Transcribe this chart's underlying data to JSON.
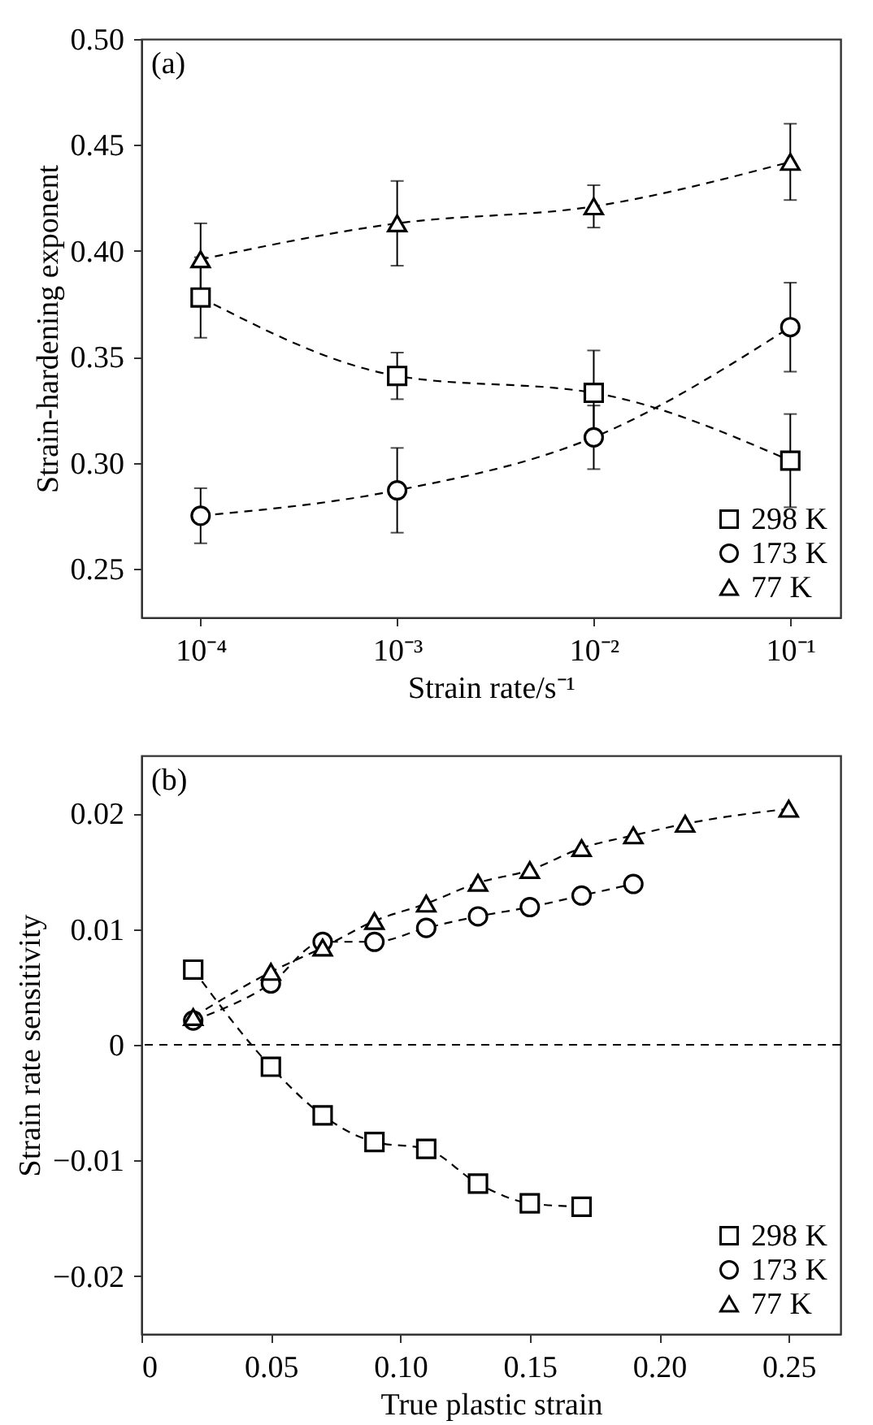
{
  "chart_data": [
    {
      "type": "line",
      "annotations": [
        "(a)"
      ],
      "xlabel": "Strain rate/s⁻¹",
      "ylabel": "Strain-hardening exponent",
      "log": "x",
      "grid": false,
      "legend": "bottom right",
      "xlim": [
        5e-05,
        0.18
      ],
      "xticks": [
        {
          "value": 0.0001,
          "label": "10⁻⁴"
        },
        {
          "value": 0.001,
          "label": "10⁻³"
        },
        {
          "value": 0.01,
          "label": "10⁻²"
        },
        {
          "value": 0.1,
          "label": "10⁻¹"
        }
      ],
      "ylim": [
        0.227,
        0.5
      ],
      "yticks": [
        0.25,
        {
          "value": 0.3,
          "label": "0.30"
        },
        0.35,
        {
          "value": 0.4,
          "label": "0.40"
        },
        0.45,
        {
          "value": 0.5,
          "label": "0.50"
        }
      ],
      "x": [
        0.0001,
        0.001,
        0.01,
        0.1
      ],
      "line_style": "dashed",
      "series": [
        {
          "name": "298 K",
          "color": "#000000",
          "marker": "square",
          "values": [
            0.378,
            0.341,
            0.333,
            0.301
          ],
          "errors": [
            0.019,
            0.011,
            0.02,
            0.022
          ]
        },
        {
          "name": "173 K",
          "color": "#000000",
          "marker": "circle",
          "values": [
            0.275,
            0.287,
            0.312,
            0.364
          ],
          "errors": [
            0.013,
            0.02,
            0.015,
            0.021
          ]
        },
        {
          "name": "77 K",
          "color": "#000000",
          "marker": "triangle",
          "values": [
            0.396,
            0.413,
            0.421,
            0.442
          ],
          "errors": [
            0.017,
            0.02,
            0.01,
            0.018
          ]
        }
      ]
    },
    {
      "type": "line",
      "annotations": [
        "(b)"
      ],
      "xlabel": "True plastic strain",
      "ylabel": "Strain rate sensitivity",
      "grid": false,
      "legend": "bottom right",
      "xlim": [
        0,
        0.27
      ],
      "xticks": [
        0,
        0.05,
        {
          "value": 0.1,
          "label": "0.10"
        },
        0.15,
        {
          "value": 0.2,
          "label": "0.20"
        },
        0.25
      ],
      "ylim": [
        -0.025,
        0.025
      ],
      "yticks": [
        {
          "value": -0.02,
          "label": "−0.02"
        },
        {
          "value": -0.01,
          "label": "−0.01"
        },
        0,
        0.01,
        0.02
      ],
      "line_style": "dashed",
      "ref_lines": [
        {
          "axis": "y",
          "value": 0,
          "line_style": "dashed"
        }
      ],
      "series": [
        {
          "name": "298 K",
          "color": "#000000",
          "marker": "square",
          "x": [
            0.02,
            0.05,
            0.07,
            0.09,
            0.11,
            0.13,
            0.15,
            0.17
          ],
          "values": [
            0.0065,
            -0.0019,
            -0.0061,
            -0.0084,
            -0.009,
            -0.012,
            -0.0137,
            -0.014
          ]
        },
        {
          "name": "173 K",
          "color": "#000000",
          "marker": "circle",
          "x": [
            0.02,
            0.05,
            0.07,
            0.09,
            0.11,
            0.13,
            0.15,
            0.17,
            0.19
          ],
          "values": [
            0.0021,
            0.0053,
            0.0089,
            0.0089,
            0.0101,
            0.0111,
            0.0119,
            0.0129,
            0.0139
          ]
        },
        {
          "name": "77 K",
          "color": "#000000",
          "marker": "triangle",
          "x": [
            0.02,
            0.05,
            0.07,
            0.09,
            0.11,
            0.13,
            0.15,
            0.17,
            0.19,
            0.21,
            0.25
          ],
          "values": [
            0.0024,
            0.0063,
            0.0084,
            0.0107,
            0.0122,
            0.014,
            0.0151,
            0.017,
            0.0181,
            0.0191,
            0.0204
          ]
        }
      ]
    }
  ]
}
